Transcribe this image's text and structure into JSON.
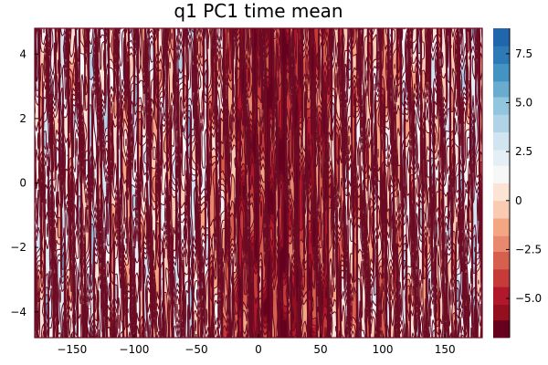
{
  "chart_data": {
    "type": "heatmap",
    "title": "q1 PC1 time mean",
    "xlabel": "",
    "ylabel": "",
    "xlim": [
      -180,
      180
    ],
    "ylim": [
      -4.8,
      4.8
    ],
    "x_ticks": [
      -150,
      -100,
      -50,
      0,
      50,
      100,
      150
    ],
    "x_tick_labels": [
      "−150",
      "−100",
      "−50",
      "0",
      "50",
      "100",
      "150"
    ],
    "y_ticks": [
      -4,
      -2,
      0,
      2,
      4
    ],
    "y_tick_labels": [
      "−4",
      "−2",
      "0",
      "2",
      "4"
    ],
    "colorbar": {
      "min": -7.0,
      "max": 8.8,
      "levels": [
        -7.0,
        -6.1,
        -5.3,
        -4.4,
        -3.5,
        -2.6,
        -1.8,
        -0.9,
        0.0,
        0.9,
        1.8,
        2.6,
        3.5,
        4.4,
        5.3,
        6.1,
        7.0,
        7.9,
        8.8
      ],
      "ticks": [
        -5.0,
        -2.5,
        0,
        2.5,
        5.0,
        7.5
      ],
      "tick_labels": [
        "−5.0",
        "−2.5",
        "0",
        "2.5",
        "5.0",
        "7.5"
      ],
      "colorscale": "RdBu",
      "colors": [
        "#67001f",
        "#94101f",
        "#b2182b",
        "#c63a3a",
        "#d6604d",
        "#e8896f",
        "#f4a582",
        "#f9cbb2",
        "#fbe4d6",
        "#f7f7f7",
        "#e3eef5",
        "#d1e5f0",
        "#b0d3e7",
        "#92c5de",
        "#6aaccf",
        "#4393c3",
        "#2e7ab6",
        "#2166ac",
        "#0b3b6e"
      ]
    },
    "contour_color": "#6b0b23",
    "column_profile": [
      {
        "x": -180,
        "v": 0.5
      },
      {
        "x": -170,
        "v": 1.5
      },
      {
        "x": -160,
        "v": 2.0
      },
      {
        "x": -150,
        "v": 0.5
      },
      {
        "x": -140,
        "v": 1.0
      },
      {
        "x": -130,
        "v": 2.5
      },
      {
        "x": -120,
        "v": 1.0
      },
      {
        "x": -110,
        "v": 0.0
      },
      {
        "x": -100,
        "v": 1.5
      },
      {
        "x": -90,
        "v": 1.0
      },
      {
        "x": -80,
        "v": -0.5
      },
      {
        "x": -70,
        "v": 0.5
      },
      {
        "x": -60,
        "v": 2.0
      },
      {
        "x": -50,
        "v": 1.5
      },
      {
        "x": -40,
        "v": -0.5
      },
      {
        "x": -30,
        "v": -1.0
      },
      {
        "x": -20,
        "v": -2.5
      },
      {
        "x": -10,
        "v": -4.0
      },
      {
        "x": 0,
        "v": -4.0
      },
      {
        "x": 10,
        "v": -4.5
      },
      {
        "x": 20,
        "v": -5.0
      },
      {
        "x": 30,
        "v": -4.0
      },
      {
        "x": 40,
        "v": -3.5
      },
      {
        "x": 50,
        "v": -4.0
      },
      {
        "x": 60,
        "v": -1.5
      },
      {
        "x": 70,
        "v": 0.0
      },
      {
        "x": 80,
        "v": -1.0
      },
      {
        "x": 90,
        "v": 0.5
      },
      {
        "x": 100,
        "v": -1.5
      },
      {
        "x": 110,
        "v": -0.5
      },
      {
        "x": 120,
        "v": 1.0
      },
      {
        "x": 130,
        "v": 0.0
      },
      {
        "x": 140,
        "v": 1.0
      },
      {
        "x": 150,
        "v": 0.5
      },
      {
        "x": 160,
        "v": 1.0
      },
      {
        "x": 170,
        "v": 2.5
      },
      {
        "x": 180,
        "v": 1.0
      }
    ]
  }
}
